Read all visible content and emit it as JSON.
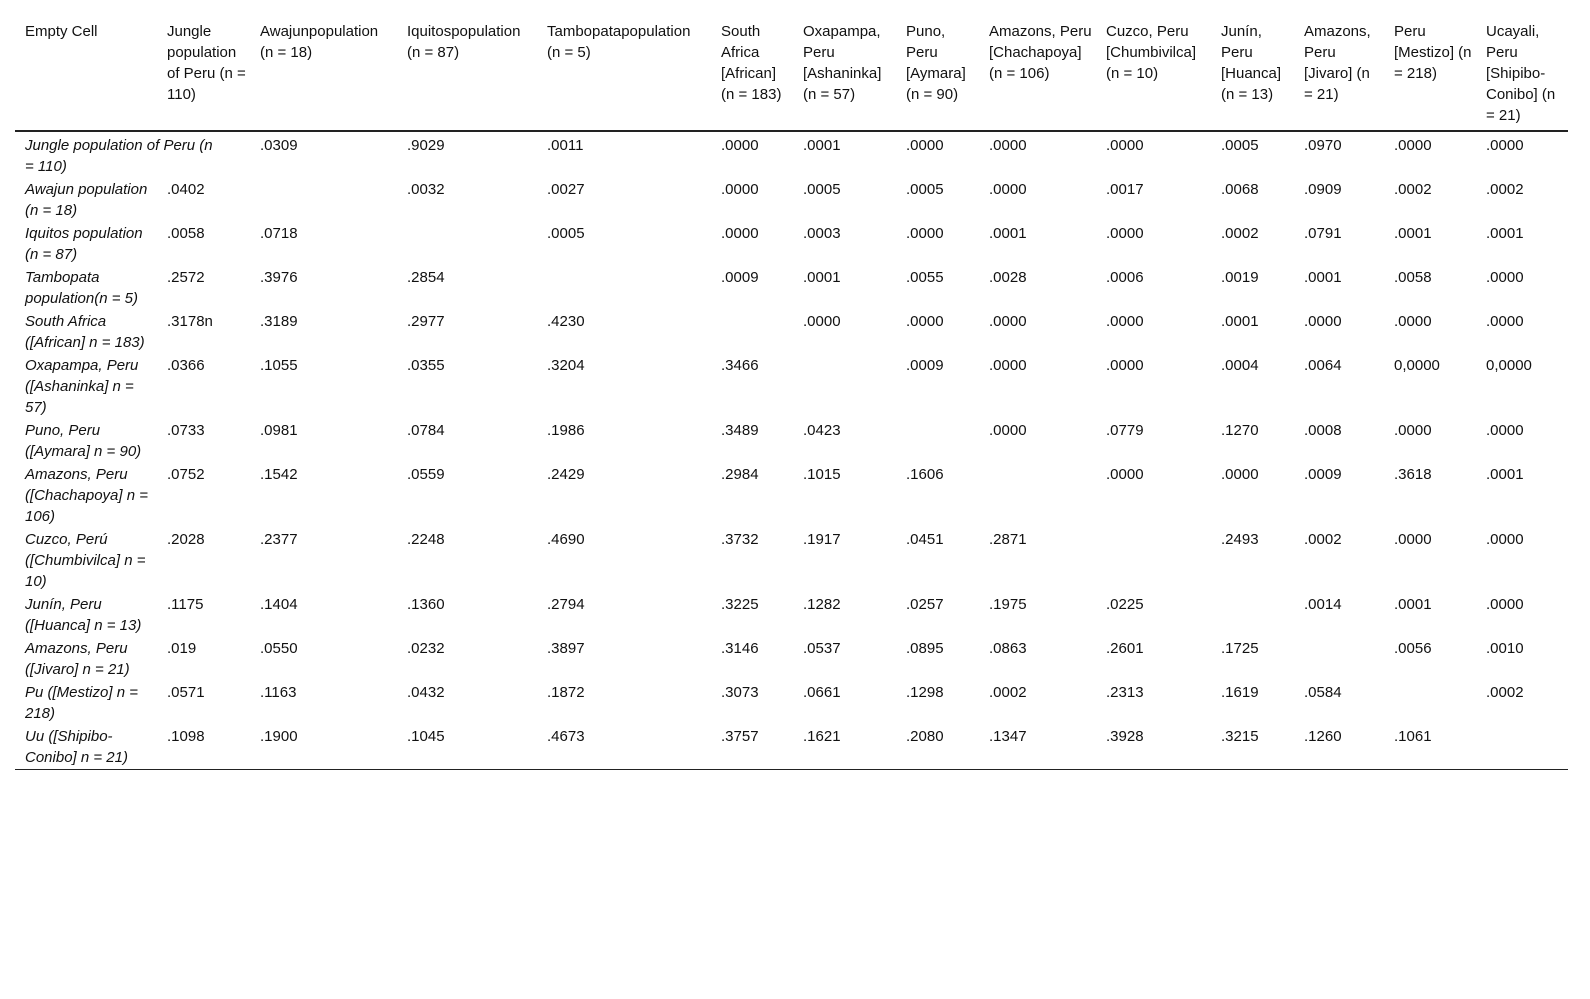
{
  "table": {
    "header": [
      "Empty Cell",
      "Jungle population of Peru (n = 110)",
      "Awajunpopulation (n = 18)",
      "Iquitospopulation (n = 87)",
      "Tambopatapopulation (n = 5)",
      "South Africa [African] (n = 183)",
      "Oxapampa, Peru [Ashaninka] (n = 57)",
      "Puno, Peru [Aymara] (n = 90)",
      "Amazons, Peru [Chachapoya] (n = 106)",
      "Cuzco, Peru [Chumbivilca] (n = 10)",
      "Junín, Peru [Huanca] (n = 13)",
      "Amazons, Peru [Jivaro] (n = 21)",
      "Peru [Mestizo] (n = 218)",
      "Ucayali, Peru [Shipibo-Conibo] (n = 21)"
    ],
    "rows": [
      [
        "Jungle population of Peru (n = 110)",
        null,
        ".0309",
        ".9029",
        ".0011",
        ".0000",
        ".0001",
        ".0000",
        ".0000",
        ".0000",
        ".0005",
        ".0970",
        ".0000",
        ".0000"
      ],
      [
        "Awajun population (n = 18)",
        ".0402",
        null,
        ".0032",
        ".0027",
        ".0000",
        ".0005",
        ".0005",
        ".0000",
        ".0017",
        ".0068",
        ".0909",
        ".0002",
        ".0002"
      ],
      [
        "Iquitos population (n = 87)",
        ".0058",
        ".0718",
        null,
        ".0005",
        ".0000",
        ".0003",
        ".0000",
        ".0001",
        ".0000",
        ".0002",
        ".0791",
        ".0001",
        ".0001"
      ],
      [
        "Tambopata population(n = 5)",
        ".2572",
        ".3976",
        ".2854",
        null,
        ".0009",
        ".0001",
        ".0055",
        ".0028",
        ".0006",
        ".0019",
        ".0001",
        ".0058",
        ".0000"
      ],
      [
        "South Africa ([African] n = 183)",
        ".3178n",
        ".3189",
        ".2977",
        ".4230",
        null,
        ".0000",
        ".0000",
        ".0000",
        ".0000",
        ".0001",
        ".0000",
        ".0000",
        ".0000"
      ],
      [
        "Oxapampa, Peru ([Ashaninka] n = 57)",
        ".0366",
        ".1055",
        ".0355",
        ".3204",
        ".3466",
        null,
        ".0009",
        ".0000",
        ".0000",
        ".0004",
        ".0064",
        "0,0000",
        "0,0000"
      ],
      [
        "Puno, Peru ([Aymara] n = 90)",
        ".0733",
        ".0981",
        ".0784",
        ".1986",
        ".3489",
        ".0423",
        null,
        ".0000",
        ".0779",
        ".1270",
        ".0008",
        ".0000",
        ".0000"
      ],
      [
        "Amazons, Peru ([Chachapoya] n = 106)",
        ".0752",
        ".1542",
        ".0559",
        ".2429",
        ".2984",
        ".1015",
        ".1606",
        null,
        ".0000",
        ".0000",
        ".0009",
        ".3618",
        ".0001"
      ],
      [
        "Cuzco, Perú ([Chumbivilca] n = 10)",
        ".2028",
        ".2377",
        ".2248",
        ".4690",
        ".3732",
        ".1917",
        ".0451",
        ".2871",
        null,
        ".2493",
        ".0002",
        ".0000",
        ".0000"
      ],
      [
        "Junín, Peru ([Huanca] n = 13)",
        ".1175",
        ".1404",
        ".1360",
        ".2794",
        ".3225",
        ".1282",
        ".0257",
        ".1975",
        ".0225",
        null,
        ".0014",
        ".0001",
        ".0000"
      ],
      [
        "Amazons, Peru ([Jivaro] n = 21)",
        ".019",
        ".0550",
        ".0232",
        ".3897",
        ".3146",
        ".0537",
        ".0895",
        ".0863",
        ".2601",
        ".1725",
        null,
        ".0056",
        ".0010"
      ],
      [
        "Pu ([Mestizo] n = 218)",
        ".0571",
        ".1163",
        ".0432",
        ".1872",
        ".3073",
        ".0661",
        ".1298",
        ".0002",
        ".2313",
        ".1619",
        ".0584",
        null,
        ".0002"
      ],
      [
        "Uu ([Shipibo-Conibo] n = 21)",
        ".1098",
        ".1900",
        ".1045",
        ".4673",
        ".3757",
        ".1621",
        ".2080",
        ".1347",
        ".3928",
        ".3215",
        ".1260",
        ".1061",
        null
      ]
    ]
  }
}
